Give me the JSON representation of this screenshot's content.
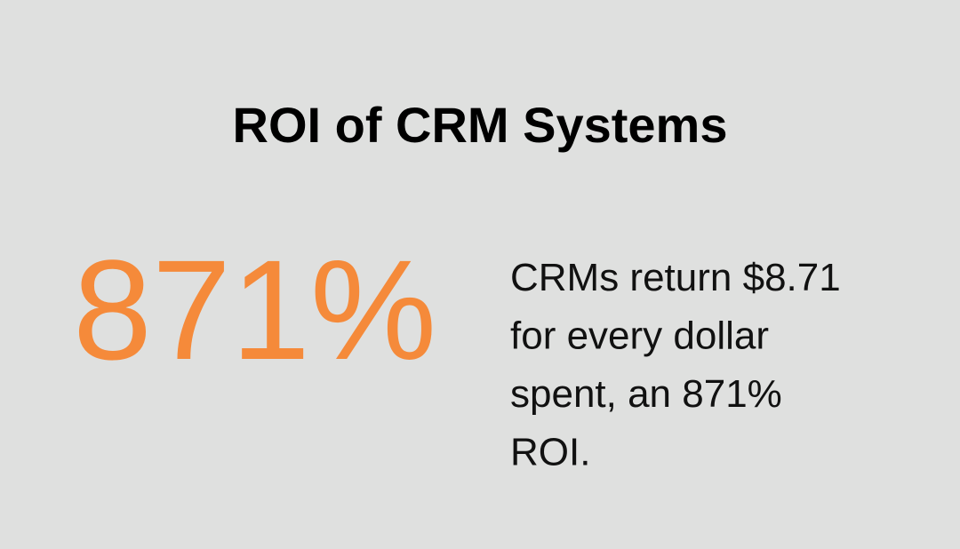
{
  "title": "ROI of CRM Systems",
  "stat": "871%",
  "description": {
    "lines": [
      "CRMs return $8.71",
      "for every dollar",
      "spent, an 871%",
      "ROI."
    ]
  }
}
